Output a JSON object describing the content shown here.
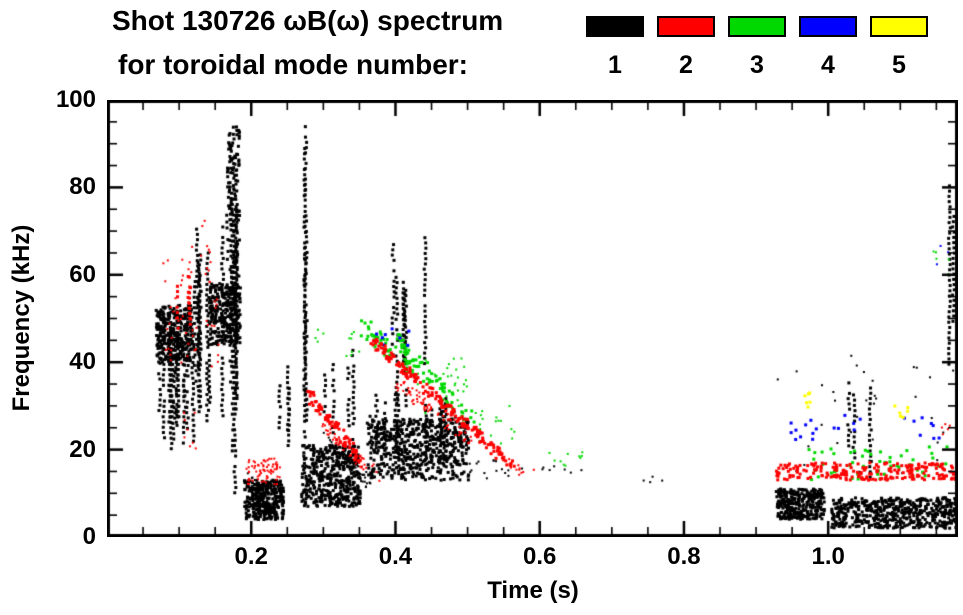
{
  "chart_data": {
    "type": "scatter",
    "title": "Shot 130726 ωB(ω) spectrum",
    "subtitle": "for toroidal mode number:",
    "xlabel": "Time (s)",
    "ylabel": "Frequency (kHz)",
    "xlim": [
      0.0,
      1.18
    ],
    "ylim": [
      0,
      100
    ],
    "x_ticks": [
      {
        "value": 0.2,
        "label": "0.2"
      },
      {
        "value": 0.4,
        "label": "0.4"
      },
      {
        "value": 0.6,
        "label": "0.6"
      },
      {
        "value": 0.8,
        "label": "0.8"
      },
      {
        "value": 1.0,
        "label": "1.0"
      }
    ],
    "y_ticks": [
      {
        "value": 0,
        "label": "0"
      },
      {
        "value": 20,
        "label": "20"
      },
      {
        "value": 40,
        "label": "40"
      },
      {
        "value": 60,
        "label": "60"
      },
      {
        "value": 80,
        "label": "80"
      },
      {
        "value": 100,
        "label": "100"
      }
    ],
    "x_minor_step": 0.05,
    "y_minor_step": 5,
    "grid": false,
    "legend_position": "top-right",
    "modes": [
      {
        "mode": 1,
        "label": "1",
        "color": "#000000"
      },
      {
        "mode": 2,
        "label": "2",
        "color": "#ff0000"
      },
      {
        "mode": 3,
        "label": "3",
        "color": "#00d900"
      },
      {
        "mode": 4,
        "label": "4",
        "color": "#0000ff"
      },
      {
        "mode": 5,
        "label": "5",
        "color": "#ffff00"
      }
    ],
    "draw_order": [
      1,
      3,
      4,
      5,
      2
    ],
    "clusters": [
      {
        "mode": 1,
        "kind": "vstreaks",
        "t": [
          0.065,
          0.12
        ],
        "f": [
          20,
          52
        ],
        "streaks": 14
      },
      {
        "mode": 1,
        "kind": "blob",
        "t": [
          0.068,
          0.118
        ],
        "f": [
          40,
          53
        ],
        "n": 300,
        "size": 3
      },
      {
        "mode": 1,
        "kind": "vstreaks",
        "t": [
          0.12,
          0.165
        ],
        "f": [
          24,
          72
        ],
        "streaks": 9
      },
      {
        "mode": 1,
        "kind": "blob",
        "t": [
          0.143,
          0.185
        ],
        "f": [
          44,
          58
        ],
        "n": 260,
        "size": 3
      },
      {
        "mode": 1,
        "kind": "vstreaks",
        "t": [
          0.164,
          0.186
        ],
        "f": [
          8,
          95
        ],
        "streaks": 5
      },
      {
        "mode": 1,
        "kind": "blob",
        "t": [
          0.166,
          0.184
        ],
        "f": [
          58,
          94
        ],
        "n": 90,
        "size": 3
      },
      {
        "mode": 1,
        "kind": "blob",
        "t": [
          0.19,
          0.245
        ],
        "f": [
          4,
          13
        ],
        "n": 330,
        "size": 3
      },
      {
        "mode": 1,
        "kind": "chirp",
        "t": [
          0.196,
          0.228
        ],
        "f": [
          15,
          6
        ],
        "n": 40,
        "jt": 0.003,
        "jf": 1.2,
        "size": 2
      },
      {
        "mode": 1,
        "kind": "vstreaks",
        "t": [
          0.228,
          0.258
        ],
        "f": [
          20,
          40
        ],
        "streaks": 3
      },
      {
        "mode": 1,
        "kind": "vstreaks",
        "t": [
          0.266,
          0.28
        ],
        "f": [
          12,
          95
        ],
        "streaks": 3
      },
      {
        "mode": 1,
        "kind": "blob",
        "t": [
          0.27,
          0.352
        ],
        "f": [
          7,
          21
        ],
        "n": 420,
        "size": 3
      },
      {
        "mode": 1,
        "kind": "chirp",
        "t": [
          0.3,
          0.365
        ],
        "f": [
          23,
          12
        ],
        "n": 60,
        "jt": 0.004,
        "jf": 1.5,
        "size": 2
      },
      {
        "mode": 1,
        "kind": "vstreaks",
        "t": [
          0.3,
          0.345
        ],
        "f": [
          22,
          45
        ],
        "streaks": 4
      },
      {
        "mode": 1,
        "kind": "blob",
        "t": [
          0.362,
          0.502
        ],
        "f": [
          13,
          27
        ],
        "n": 520,
        "size": 3
      },
      {
        "mode": 1,
        "kind": "vstreaks",
        "t": [
          0.362,
          0.5
        ],
        "f": [
          15,
          33
        ],
        "streaks": 16
      },
      {
        "mode": 1,
        "kind": "vstreaks",
        "t": [
          0.385,
          0.445
        ],
        "f": [
          30,
          70
        ],
        "streaks": 7
      },
      {
        "mode": 1,
        "kind": "scatter",
        "t": [
          0.5,
          0.58
        ],
        "f": [
          13,
          18
        ],
        "n": 16,
        "size": 2
      },
      {
        "mode": 1,
        "kind": "scatter",
        "t": [
          0.6,
          0.66
        ],
        "f": [
          14,
          17
        ],
        "n": 7,
        "size": 2
      },
      {
        "mode": 1,
        "kind": "scatter",
        "t": [
          0.73,
          0.77
        ],
        "f": [
          11,
          14
        ],
        "n": 4,
        "size": 2
      },
      {
        "mode": 1,
        "kind": "blob",
        "t": [
          0.928,
          0.995
        ],
        "f": [
          4,
          11
        ],
        "n": 300,
        "size": 3
      },
      {
        "mode": 1,
        "kind": "blob",
        "t": [
          1.005,
          1.18
        ],
        "f": [
          2,
          9
        ],
        "n": 520,
        "size": 3
      },
      {
        "mode": 1,
        "kind": "scatter",
        "t": [
          0.93,
          1.175
        ],
        "f": [
          12,
          42
        ],
        "n": 34,
        "size": 2
      },
      {
        "mode": 1,
        "kind": "vstreaks",
        "t": [
          0.975,
          1.06
        ],
        "f": [
          12,
          38
        ],
        "streaks": 3
      },
      {
        "mode": 1,
        "kind": "vstreaks",
        "t": [
          1.148,
          1.175
        ],
        "f": [
          38,
          86
        ],
        "streaks": 2
      },
      {
        "mode": 3,
        "kind": "scatter",
        "t": [
          0.285,
          0.305
        ],
        "f": [
          44,
          48
        ],
        "n": 4,
        "size": 2
      },
      {
        "mode": 3,
        "kind": "scatter",
        "t": [
          0.33,
          0.355
        ],
        "f": [
          40,
          47
        ],
        "n": 8,
        "size": 2
      },
      {
        "mode": 3,
        "kind": "chirp",
        "t": [
          0.355,
          0.43
        ],
        "f": [
          48,
          38
        ],
        "n": 46,
        "jt": 0.006,
        "jf": 2.2,
        "size": 3
      },
      {
        "mode": 3,
        "kind": "chirp",
        "t": [
          0.4,
          0.505
        ],
        "f": [
          45,
          27
        ],
        "n": 70,
        "jt": 0.006,
        "jf": 2.2,
        "size": 3
      },
      {
        "mode": 3,
        "kind": "scatter",
        "t": [
          0.43,
          0.5
        ],
        "f": [
          28,
          42
        ],
        "n": 30,
        "size": 2
      },
      {
        "mode": 3,
        "kind": "scatter",
        "t": [
          0.505,
          0.575
        ],
        "f": [
          21,
          30
        ],
        "n": 18,
        "size": 2
      },
      {
        "mode": 3,
        "kind": "scatter",
        "t": [
          0.6,
          0.66
        ],
        "f": [
          16,
          20
        ],
        "n": 10,
        "size": 2
      },
      {
        "mode": 3,
        "kind": "scatter",
        "t": [
          0.955,
          1.165
        ],
        "f": [
          13,
          21
        ],
        "n": 55,
        "size": 3
      },
      {
        "mode": 3,
        "kind": "scatter",
        "t": [
          1.145,
          1.17
        ],
        "f": [
          60,
          66
        ],
        "n": 5,
        "size": 2
      },
      {
        "mode": 4,
        "kind": "scatter",
        "t": [
          0.37,
          0.425
        ],
        "f": [
          43,
          48
        ],
        "n": 9,
        "size": 3
      },
      {
        "mode": 4,
        "kind": "scatter",
        "t": [
          0.945,
          0.99
        ],
        "f": [
          22,
          28
        ],
        "n": 10,
        "size": 3
      },
      {
        "mode": 4,
        "kind": "scatter",
        "t": [
          1.005,
          1.045
        ],
        "f": [
          24,
          28
        ],
        "n": 6,
        "size": 3
      },
      {
        "mode": 4,
        "kind": "scatter",
        "t": [
          1.095,
          1.155
        ],
        "f": [
          22,
          28
        ],
        "n": 8,
        "size": 3
      },
      {
        "mode": 4,
        "kind": "scatter",
        "t": [
          1.15,
          1.17
        ],
        "f": [
          62,
          67
        ],
        "n": 3,
        "size": 2
      },
      {
        "mode": 5,
        "kind": "scatter",
        "t": [
          0.96,
          0.978
        ],
        "f": [
          29,
          34
        ],
        "n": 6,
        "size": 3
      },
      {
        "mode": 5,
        "kind": "scatter",
        "t": [
          1.085,
          1.115
        ],
        "f": [
          27,
          31
        ],
        "n": 6,
        "size": 3
      },
      {
        "mode": 2,
        "kind": "scatter",
        "t": [
          0.078,
          0.158
        ],
        "f": [
          38,
          66
        ],
        "n": 55,
        "size": 2
      },
      {
        "mode": 2,
        "kind": "vstreaks",
        "t": [
          0.09,
          0.12
        ],
        "f": [
          44,
          64
        ],
        "streaks": 3
      },
      {
        "mode": 2,
        "kind": "scatter",
        "t": [
          0.11,
          0.14
        ],
        "f": [
          66,
          78
        ],
        "n": 4,
        "size": 2
      },
      {
        "mode": 2,
        "kind": "scatter",
        "t": [
          0.095,
          0.125
        ],
        "f": [
          18,
          30
        ],
        "n": 8,
        "size": 2
      },
      {
        "mode": 2,
        "kind": "blob",
        "t": [
          0.193,
          0.24
        ],
        "f": [
          12,
          18
        ],
        "n": 70,
        "size": 2
      },
      {
        "mode": 2,
        "kind": "chirp",
        "t": [
          0.278,
          0.35
        ],
        "f": [
          33,
          18
        ],
        "n": 75,
        "jt": 0.004,
        "jf": 1.6,
        "size": 3
      },
      {
        "mode": 2,
        "kind": "chirp",
        "t": [
          0.3,
          0.375
        ],
        "f": [
          25,
          14
        ],
        "n": 45,
        "jt": 0.004,
        "jf": 1.4,
        "size": 2
      },
      {
        "mode": 2,
        "kind": "chirp",
        "t": [
          0.368,
          0.565
        ],
        "f": [
          45,
          16
        ],
        "n": 190,
        "jt": 0.004,
        "jf": 1.3,
        "size": 3
      },
      {
        "mode": 2,
        "kind": "chirp",
        "t": [
          0.395,
          0.505
        ],
        "f": [
          36,
          22
        ],
        "n": 70,
        "jt": 0.005,
        "jf": 1.5,
        "size": 2
      },
      {
        "mode": 2,
        "kind": "scatter",
        "t": [
          0.555,
          0.6
        ],
        "f": [
          14,
          18
        ],
        "n": 10,
        "size": 2
      },
      {
        "mode": 2,
        "kind": "blob",
        "t": [
          0.928,
          1.18
        ],
        "f": [
          13,
          17
        ],
        "n": 230,
        "size": 3
      },
      {
        "mode": 2,
        "kind": "scatter",
        "t": [
          1.15,
          1.178
        ],
        "f": [
          22,
          27
        ],
        "n": 6,
        "size": 2
      }
    ]
  }
}
